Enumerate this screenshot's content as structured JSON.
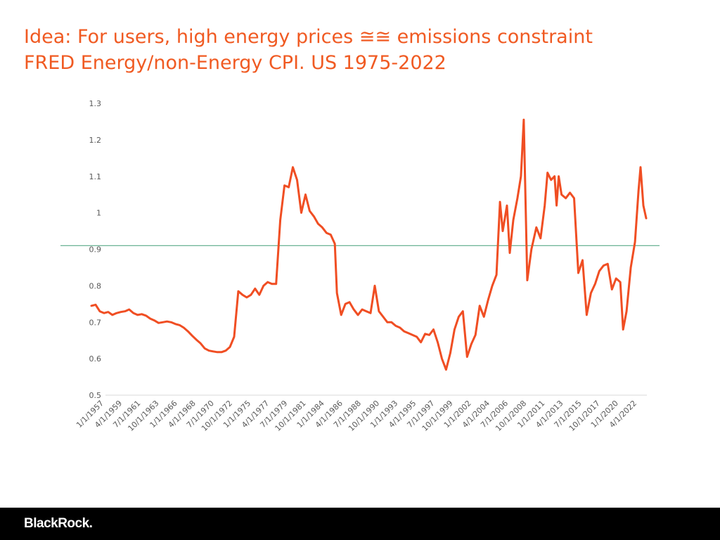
{
  "slide": {
    "title_line1": "Idea:  For users, high energy prices ≅≅ emissions constraint",
    "title_line2": "FRED Energy/non-Energy CPI. US 1975-2022",
    "title_color": "#f05a22"
  },
  "footer": {
    "brand": "BlackRock.",
    "background": "#000000"
  },
  "chart_data": {
    "type": "line",
    "title": "",
    "xlabel": "",
    "ylabel": "",
    "ylim": [
      0.5,
      1.3
    ],
    "yticks": [
      "0.5",
      "0.6",
      "0.7",
      "0.8",
      "0.9",
      "1",
      "1.1",
      "1.2",
      "1.3"
    ],
    "xtick_labels": [
      "1/1/1957",
      "4/1/1959",
      "7/1/1961",
      "10/1/1963",
      "1/1/1966",
      "4/1/1968",
      "7/1/1970",
      "10/1/1972",
      "1/1/1975",
      "4/1/1977",
      "7/1/1979",
      "10/1/1981",
      "1/1/1984",
      "4/1/1986",
      "7/1/1988",
      "10/1/1990",
      "1/1/1993",
      "4/1/1995",
      "7/1/1997",
      "10/1/1999",
      "1/1/2002",
      "4/1/2004",
      "7/1/2006",
      "10/1/2008",
      "1/1/2011",
      "4/1/2013",
      "7/1/2015",
      "10/1/2017",
      "1/1/2020",
      "4/1/2022"
    ],
    "x_range": [
      "1957-01",
      "2023-03"
    ],
    "grid": false,
    "series": [
      {
        "color": "#f04e23",
        "points": [
          [
            "1957-01",
            0.745
          ],
          [
            "1957-07",
            0.748
          ],
          [
            "1958-01",
            0.73
          ],
          [
            "1958-07",
            0.725
          ],
          [
            "1959-01",
            0.728
          ],
          [
            "1959-07",
            0.72
          ],
          [
            "1960-01",
            0.725
          ],
          [
            "1960-07",
            0.728
          ],
          [
            "1961-01",
            0.73
          ],
          [
            "1961-07",
            0.735
          ],
          [
            "1962-01",
            0.725
          ],
          [
            "1962-07",
            0.72
          ],
          [
            "1963-01",
            0.722
          ],
          [
            "1963-07",
            0.718
          ],
          [
            "1964-01",
            0.71
          ],
          [
            "1964-07",
            0.705
          ],
          [
            "1965-01",
            0.698
          ],
          [
            "1965-07",
            0.7
          ],
          [
            "1966-01",
            0.702
          ],
          [
            "1966-07",
            0.7
          ],
          [
            "1967-01",
            0.695
          ],
          [
            "1967-07",
            0.692
          ],
          [
            "1968-01",
            0.685
          ],
          [
            "1968-07",
            0.675
          ],
          [
            "1969-01",
            0.663
          ],
          [
            "1969-07",
            0.652
          ],
          [
            "1970-01",
            0.642
          ],
          [
            "1970-07",
            0.628
          ],
          [
            "1971-01",
            0.622
          ],
          [
            "1971-07",
            0.62
          ],
          [
            "1972-01",
            0.618
          ],
          [
            "1972-07",
            0.618
          ],
          [
            "1973-01",
            0.622
          ],
          [
            "1973-07",
            0.632
          ],
          [
            "1974-01",
            0.66
          ],
          [
            "1974-07",
            0.785
          ],
          [
            "1975-01",
            0.775
          ],
          [
            "1975-07",
            0.768
          ],
          [
            "1976-01",
            0.775
          ],
          [
            "1976-07",
            0.792
          ],
          [
            "1977-01",
            0.775
          ],
          [
            "1977-07",
            0.8
          ],
          [
            "1978-01",
            0.81
          ],
          [
            "1978-07",
            0.805
          ],
          [
            "1979-01",
            0.805
          ],
          [
            "1979-07",
            0.98
          ],
          [
            "1980-01",
            1.075
          ],
          [
            "1980-07",
            1.07
          ],
          [
            "1981-01",
            1.125
          ],
          [
            "1981-07",
            1.09
          ],
          [
            "1982-01",
            1.0
          ],
          [
            "1982-07",
            1.05
          ],
          [
            "1983-01",
            1.005
          ],
          [
            "1983-07",
            0.99
          ],
          [
            "1984-01",
            0.97
          ],
          [
            "1984-07",
            0.96
          ],
          [
            "1985-01",
            0.945
          ],
          [
            "1985-07",
            0.94
          ],
          [
            "1986-01",
            0.915
          ],
          [
            "1986-04",
            0.78
          ],
          [
            "1986-10",
            0.72
          ],
          [
            "1987-04",
            0.75
          ],
          [
            "1987-10",
            0.755
          ],
          [
            "1988-04",
            0.735
          ],
          [
            "1988-10",
            0.72
          ],
          [
            "1989-04",
            0.735
          ],
          [
            "1989-10",
            0.73
          ],
          [
            "1990-04",
            0.725
          ],
          [
            "1990-10",
            0.8
          ],
          [
            "1991-04",
            0.73
          ],
          [
            "1991-10",
            0.715
          ],
          [
            "1992-04",
            0.7
          ],
          [
            "1992-10",
            0.7
          ],
          [
            "1993-04",
            0.69
          ],
          [
            "1993-10",
            0.685
          ],
          [
            "1994-04",
            0.675
          ],
          [
            "1994-10",
            0.67
          ],
          [
            "1995-04",
            0.665
          ],
          [
            "1995-10",
            0.66
          ],
          [
            "1996-04",
            0.645
          ],
          [
            "1996-10",
            0.668
          ],
          [
            "1997-04",
            0.665
          ],
          [
            "1997-10",
            0.68
          ],
          [
            "1998-04",
            0.645
          ],
          [
            "1998-10",
            0.6
          ],
          [
            "1999-04",
            0.57
          ],
          [
            "1999-10",
            0.615
          ],
          [
            "2000-04",
            0.68
          ],
          [
            "2000-10",
            0.715
          ],
          [
            "2001-04",
            0.73
          ],
          [
            "2001-10",
            0.605
          ],
          [
            "2002-04",
            0.64
          ],
          [
            "2002-10",
            0.665
          ],
          [
            "2003-04",
            0.745
          ],
          [
            "2003-10",
            0.715
          ],
          [
            "2004-04",
            0.76
          ],
          [
            "2004-10",
            0.8
          ],
          [
            "2005-04",
            0.83
          ],
          [
            "2005-09",
            1.03
          ],
          [
            "2006-01",
            0.95
          ],
          [
            "2006-07",
            1.02
          ],
          [
            "2006-11",
            0.89
          ],
          [
            "2007-04",
            0.98
          ],
          [
            "2007-10",
            1.04
          ],
          [
            "2008-03",
            1.1
          ],
          [
            "2008-07",
            1.255
          ],
          [
            "2008-12",
            0.815
          ],
          [
            "2009-06",
            0.9
          ],
          [
            "2010-01",
            0.96
          ],
          [
            "2010-07",
            0.93
          ],
          [
            "2011-01",
            1.02
          ],
          [
            "2011-05",
            1.11
          ],
          [
            "2011-10",
            1.09
          ],
          [
            "2012-03",
            1.1
          ],
          [
            "2012-06",
            1.02
          ],
          [
            "2012-09",
            1.1
          ],
          [
            "2013-01",
            1.05
          ],
          [
            "2013-07",
            1.04
          ],
          [
            "2014-01",
            1.055
          ],
          [
            "2014-07",
            1.04
          ],
          [
            "2015-01",
            0.835
          ],
          [
            "2015-07",
            0.87
          ],
          [
            "2016-01",
            0.72
          ],
          [
            "2016-07",
            0.78
          ],
          [
            "2017-01",
            0.805
          ],
          [
            "2017-07",
            0.84
          ],
          [
            "2018-01",
            0.855
          ],
          [
            "2018-07",
            0.86
          ],
          [
            "2019-01",
            0.79
          ],
          [
            "2019-07",
            0.82
          ],
          [
            "2020-01",
            0.81
          ],
          [
            "2020-05",
            0.68
          ],
          [
            "2020-10",
            0.73
          ],
          [
            "2021-04",
            0.85
          ],
          [
            "2021-10",
            0.92
          ],
          [
            "2022-03",
            1.06
          ],
          [
            "2022-06",
            1.125
          ],
          [
            "2022-10",
            1.02
          ],
          [
            "2023-02",
            0.985
          ]
        ]
      }
    ],
    "reference_line": {
      "y": 0.91,
      "color": "#5aaa88"
    }
  }
}
